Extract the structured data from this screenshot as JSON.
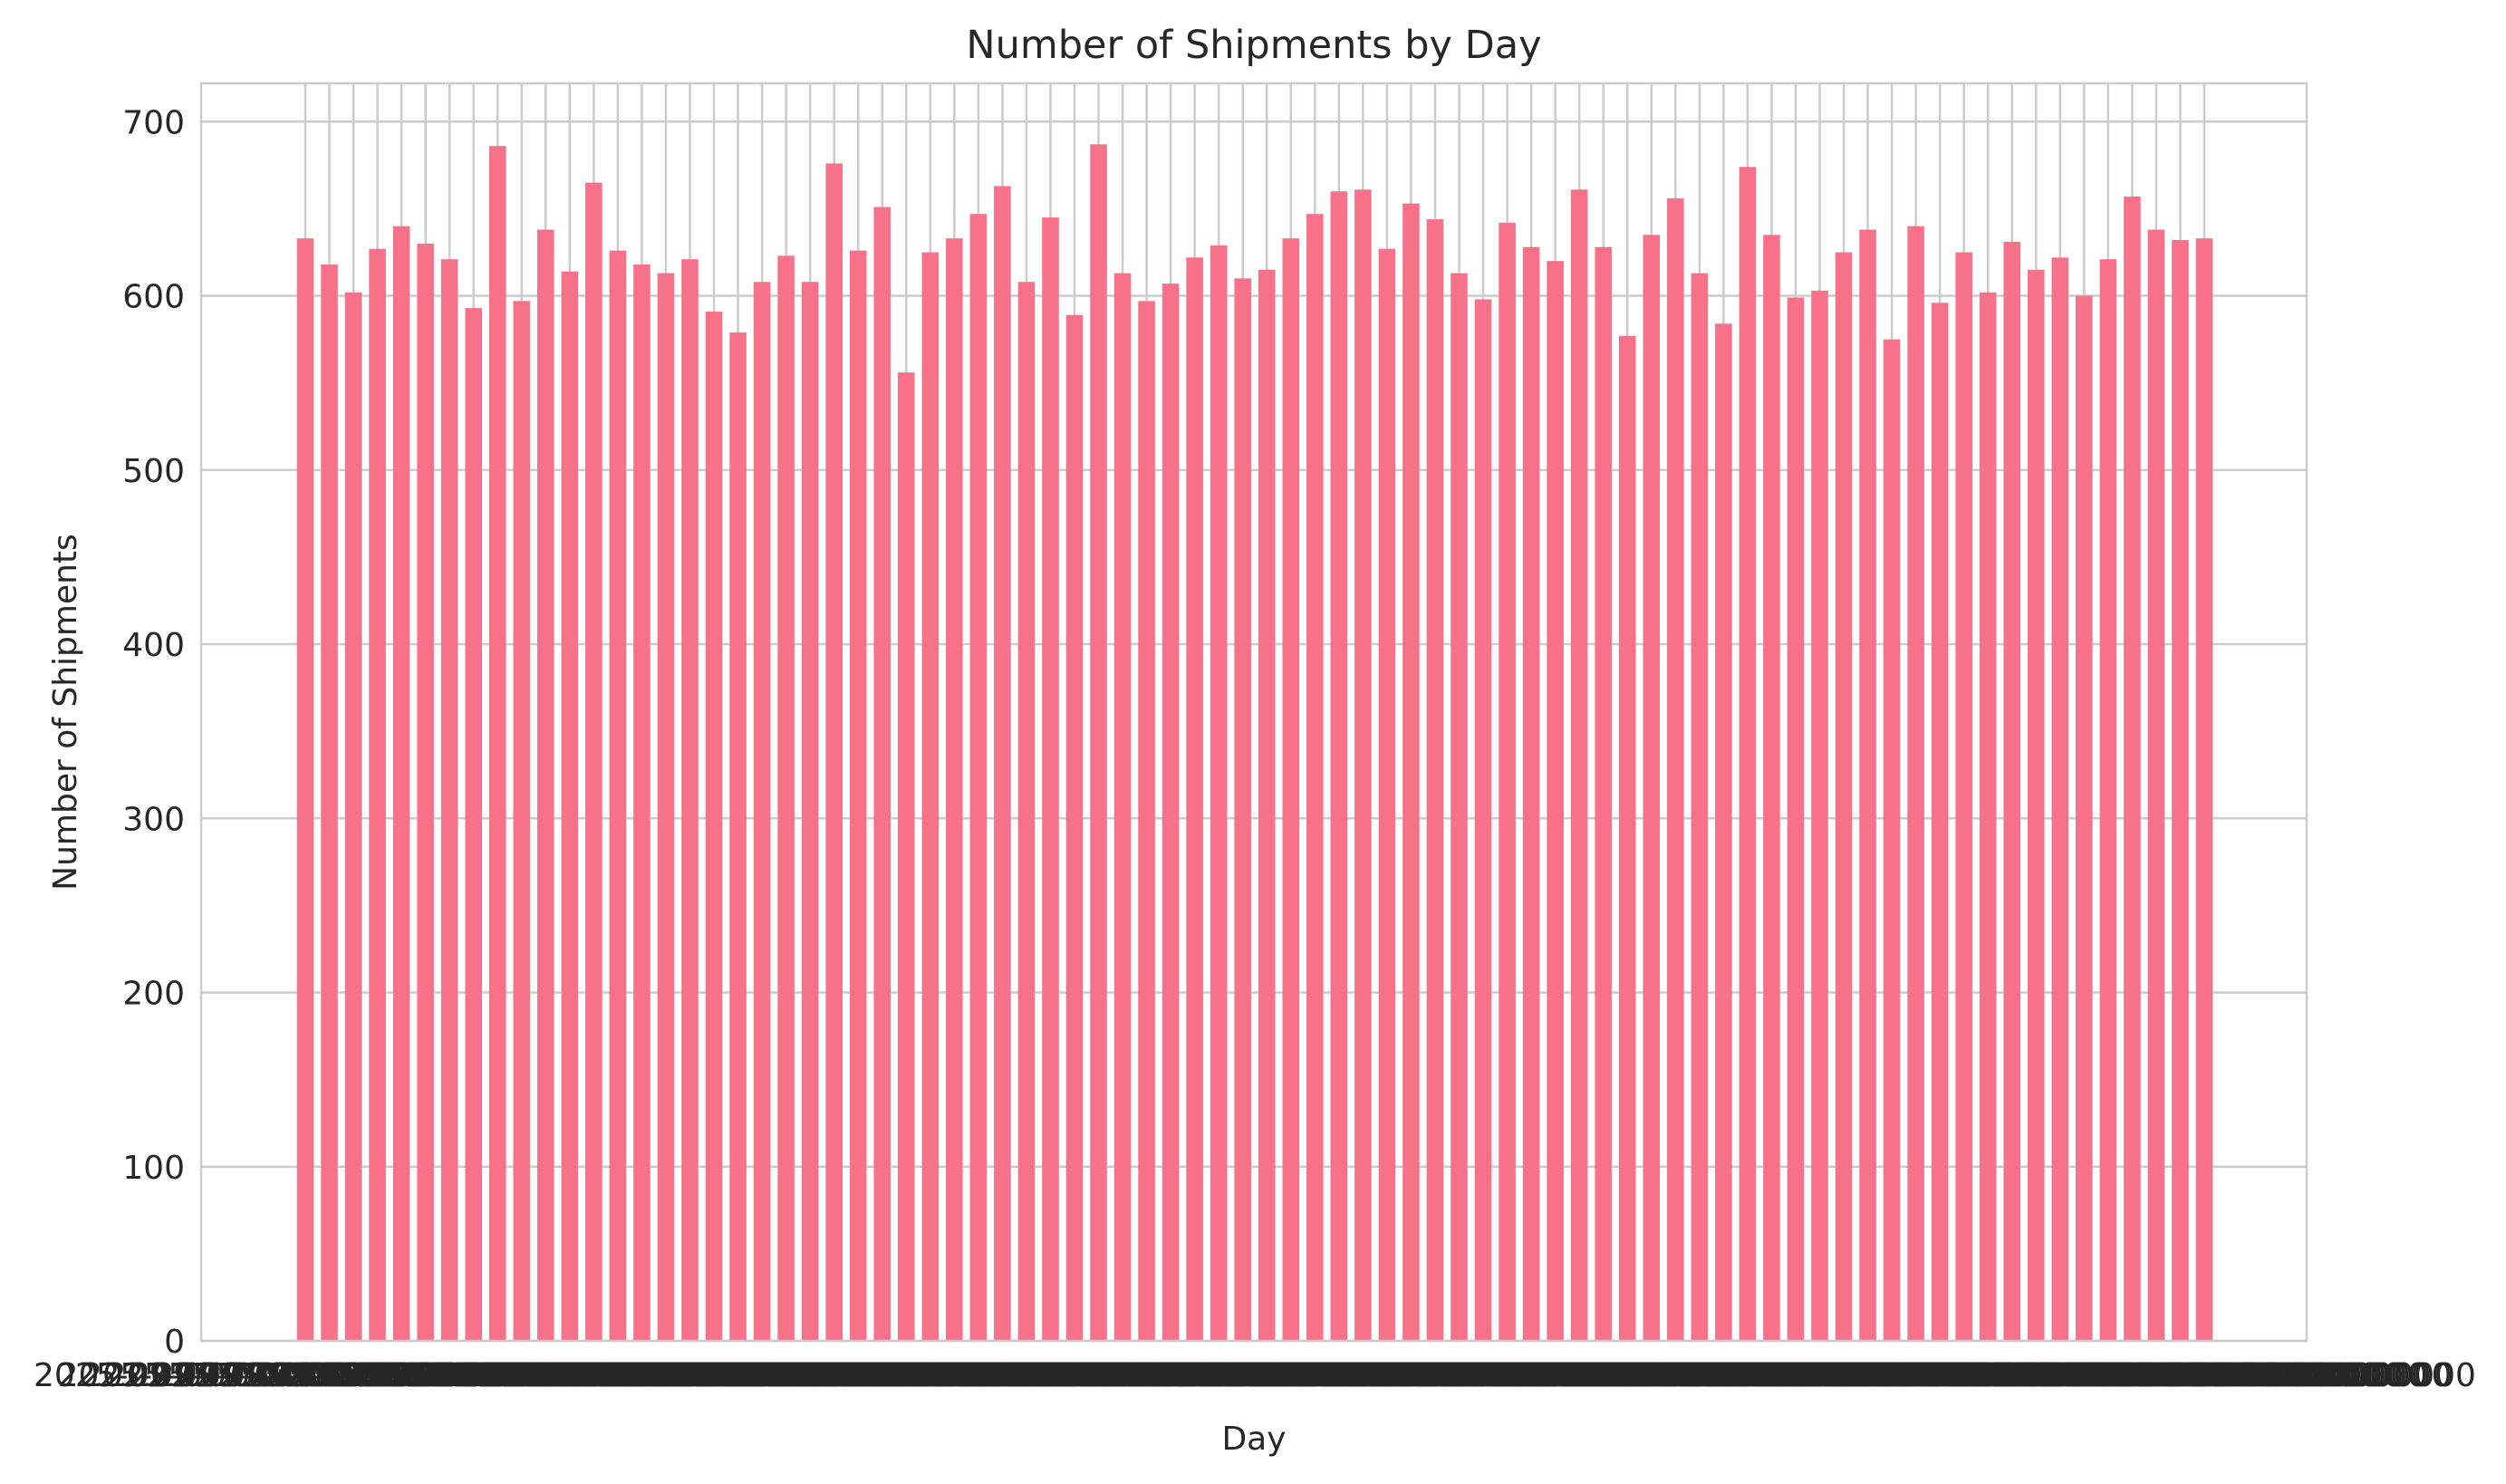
{
  "chart_data": {
    "type": "bar",
    "title": "Number of Shipments by Day",
    "xlabel": "Day",
    "ylabel": "Number of Shipments",
    "ylim": [
      0,
      722
    ],
    "yticks": [
      0,
      100,
      200,
      300,
      400,
      500,
      600,
      700
    ],
    "grid": true,
    "legend": "none",
    "bar_color": "#f77189",
    "grid_color": "#cccccc",
    "values": [
      633,
      618,
      602,
      627,
      640,
      630,
      621,
      593,
      686,
      597,
      638,
      614,
      665,
      626,
      618,
      613,
      621,
      591,
      579,
      608,
      623,
      608,
      676,
      626,
      651,
      556,
      625,
      633,
      647,
      663,
      608,
      645,
      589,
      687,
      613,
      597,
      607,
      622,
      629,
      610,
      615,
      633,
      647,
      660,
      661,
      627,
      653,
      644,
      613,
      598,
      642,
      628,
      620,
      661,
      628,
      577,
      635,
      656,
      613,
      584,
      674,
      635,
      599,
      603,
      625,
      638,
      575,
      640,
      596,
      625,
      602,
      631,
      615,
      622,
      600,
      621,
      657,
      638,
      632,
      633
    ],
    "xtick_labels_note_visible": "overlapping illegible long date labels rendered as a dense block",
    "xtick_labels": [
      "2025-09-01 00:00:00.000000000",
      "2025-09-02 00:00:00.000000000",
      "2025-09-03 00:00:00.000000000",
      "2025-09-04 00:00:00.000000000",
      "2025-09-05 00:00:00.000000000",
      "2025-09-06 00:00:00.000000000",
      "2025-09-07 00:00:00.000000000",
      "2025-09-08 00:00:00.000000000",
      "2025-09-09 00:00:00.000000000",
      "2025-09-10 00:00:00.000000000",
      "2025-09-11 00:00:00.000000000",
      "2025-09-12 00:00:00.000000000",
      "2025-09-13 00:00:00.000000000",
      "2025-09-14 00:00:00.000000000",
      "2025-09-15 00:00:00.000000000",
      "2025-09-16 00:00:00.000000000",
      "2025-09-17 00:00:00.000000000",
      "2025-09-18 00:00:00.000000000",
      "2025-09-19 00:00:00.000000000",
      "2025-09-20 00:00:00.000000000",
      "2025-09-21 00:00:00.000000000",
      "2025-09-22 00:00:00.000000000",
      "2025-09-23 00:00:00.000000000",
      "2025-09-24 00:00:00.000000000",
      "2025-09-25 00:00:00.000000000",
      "2025-09-26 00:00:00.000000000",
      "2025-09-27 00:00:00.000000000",
      "2025-09-28 00:00:00.000000000",
      "2025-09-29 00:00:00.000000000",
      "2025-09-30 00:00:00.000000000",
      "2025-10-01 00:00:00.000000000",
      "2025-10-02 00:00:00.000000000",
      "2025-10-03 00:00:00.000000000",
      "2025-10-04 00:00:00.000000000",
      "2025-10-05 00:00:00.000000000",
      "2025-10-06 00:00:00.000000000",
      "2025-10-07 00:00:00.000000000",
      "2025-10-08 00:00:00.000000000",
      "2025-10-09 00:00:00.000000000",
      "2025-10-10 00:00:00.000000000",
      "2025-10-11 00:00:00.000000000",
      "2025-10-12 00:00:00.000000000",
      "2025-10-13 00:00:00.000000000",
      "2025-10-14 00:00:00.000000000",
      "2025-10-15 00:00:00.000000000",
      "2025-10-16 00:00:00.000000000",
      "2025-10-17 00:00:00.000000000",
      "2025-10-18 00:00:00.000000000",
      "2025-10-19 00:00:00.000000000",
      "2025-10-20 00:00:00.000000000",
      "2025-10-21 00:00:00.000000000",
      "2025-10-22 00:00:00.000000000",
      "2025-10-23 00:00:00.000000000",
      "2025-10-24 00:00:00.000000000",
      "2025-10-25 00:00:00.000000000",
      "2025-10-26 00:00:00.000000000",
      "2025-10-27 00:00:00.000000000",
      "2025-10-28 00:00:00.000000000",
      "2025-10-29 00:00:00.000000000",
      "2025-10-30 00:00:00.000000000",
      "2025-10-31 00:00:00.000000000",
      "2025-11-01 00:00:00.000000000",
      "2025-11-02 00:00:00.000000000",
      "2025-11-03 00:00:00.000000000",
      "2025-11-04 00:00:00.000000000",
      "2025-11-05 00:00:00.000000000",
      "2025-11-06 00:00:00.000000000",
      "2025-11-07 00:00:00.000000000",
      "2025-11-08 00:00:00.000000000",
      "2025-11-09 00:00:00.000000000",
      "2025-11-10 00:00:00.000000000",
      "2025-11-11 00:00:00.000000000",
      "2025-11-12 00:00:00.000000000",
      "2025-11-13 00:00:00.000000000",
      "2025-11-14 00:00:00.000000000",
      "2025-11-15 00:00:00.000000000",
      "2025-11-16 00:00:00.000000000",
      "2025-11-17 00:00:00.000000000",
      "2025-11-18 00:00:00.000000000",
      "2025-11-19 00:00:00.000000000"
    ]
  }
}
